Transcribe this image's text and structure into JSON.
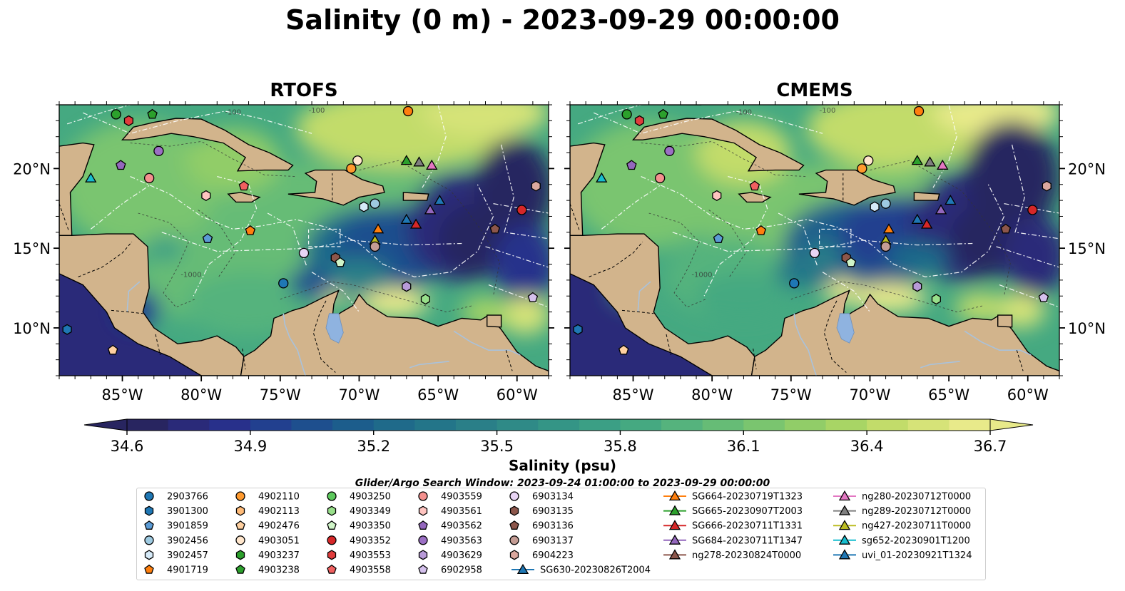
{
  "title": "Salinity (0 m) - 2023-09-29 00:00:00",
  "panels": [
    {
      "id": "rtofs",
      "title": "RTOFS"
    },
    {
      "id": "cmems",
      "title": "CMEMS"
    }
  ],
  "map": {
    "lon_range": [
      -89,
      -58
    ],
    "lat_range": [
      7,
      24
    ],
    "lon_ticks": [
      "85°W",
      "80°W",
      "75°W",
      "70°W",
      "65°W",
      "60°W"
    ],
    "lon_tick_values": [
      -85,
      -80,
      -75,
      -70,
      -65,
      -60
    ],
    "lat_ticks": [
      "10°N",
      "15°N",
      "20°N"
    ],
    "lat_tick_values": [
      10,
      15,
      20
    ],
    "depth_contour_labels": [
      "-100",
      "-1000"
    ],
    "land_color": "#d2b48c",
    "lake_color": "#8fb3e0",
    "river_color": "#a9c2dc"
  },
  "colorbar": {
    "label": "Salinity (psu)",
    "min": 34.6,
    "max": 36.7,
    "ticks": [
      "34.6",
      "34.9",
      "35.2",
      "35.5",
      "35.8",
      "36.1",
      "36.4",
      "36.7"
    ],
    "colors": [
      "#282560",
      "#2a2a79",
      "#28308b",
      "#22408f",
      "#1e4f8e",
      "#1c5d8c",
      "#1f6a8a",
      "#237589",
      "#2a7f88",
      "#2f8a87",
      "#349586",
      "#3b9f85",
      "#45a981",
      "#55b37d",
      "#66bc76",
      "#7ac56f",
      "#91cd68",
      "#a8d565",
      "#c2dc6a",
      "#d6e378",
      "#e8ea8a"
    ],
    "extend": "both"
  },
  "search_window": "Glider/Argo Search Window: 2023-09-24 01:00:00 to 2023-09-29 00:00:00",
  "legend": {
    "columns": [
      [
        {
          "label": "2903766",
          "marker": "circle",
          "color": "#1f77b4"
        },
        {
          "label": "3901300",
          "marker": "hexagon",
          "color": "#1f77b4"
        },
        {
          "label": "3901859",
          "marker": "pentagon",
          "color": "#5b9bd5"
        },
        {
          "label": "3902456",
          "marker": "circle",
          "color": "#9ecae1"
        },
        {
          "label": "3902457",
          "marker": "hexagon",
          "color": "#d6eaf8"
        },
        {
          "label": "4901719",
          "marker": "pentagon",
          "color": "#ff7f0e"
        }
      ],
      [
        {
          "label": "4902110",
          "marker": "circle",
          "color": "#ff9a2e"
        },
        {
          "label": "4902113",
          "marker": "hexagon",
          "color": "#ffbb78"
        },
        {
          "label": "4902476",
          "marker": "pentagon",
          "color": "#ffd0a0"
        },
        {
          "label": "4903051",
          "marker": "circle",
          "color": "#ffe6cc"
        },
        {
          "label": "4903237",
          "marker": "hexagon",
          "color": "#2ca02c"
        },
        {
          "label": "4903238",
          "marker": "pentagon",
          "color": "#2ca02c"
        }
      ],
      [
        {
          "label": "4903250",
          "marker": "circle",
          "color": "#5cc85c"
        },
        {
          "label": "4903349",
          "marker": "hexagon",
          "color": "#98df8a"
        },
        {
          "label": "4903350",
          "marker": "pentagon",
          "color": "#d0f5c8"
        },
        {
          "label": "4903352",
          "marker": "circle",
          "color": "#d62728"
        },
        {
          "label": "4903553",
          "marker": "hexagon",
          "color": "#e03c3c"
        },
        {
          "label": "4903558",
          "marker": "pentagon",
          "color": "#f06060"
        }
      ],
      [
        {
          "label": "4903559",
          "marker": "circle",
          "color": "#f4908e"
        },
        {
          "label": "4903561",
          "marker": "hexagon",
          "color": "#ffc4c0"
        },
        {
          "label": "4903562",
          "marker": "pentagon",
          "color": "#9467bd"
        },
        {
          "label": "4903563",
          "marker": "circle",
          "color": "#9b6fc4"
        },
        {
          "label": "4903629",
          "marker": "hexagon",
          "color": "#b89ad8"
        },
        {
          "label": "6902958",
          "marker": "pentagon",
          "color": "#d4c0ec"
        }
      ],
      [
        {
          "label": "6903134",
          "marker": "circle",
          "color": "#e8d4f4"
        },
        {
          "label": "6903135",
          "marker": "hexagon",
          "color": "#8c564b"
        },
        {
          "label": "6903136",
          "marker": "pentagon",
          "color": "#8c564b"
        },
        {
          "label": "6903137",
          "marker": "circle",
          "color": "#c49c94"
        },
        {
          "label": "6904223",
          "marker": "hexagon",
          "color": "#dba89e"
        },
        {
          "label": "SG630-20230826T2004",
          "marker": "triangle",
          "color": "#1f77b4"
        }
      ],
      [
        {
          "label": "SG664-20230719T1323",
          "marker": "triangle",
          "color": "#ff7f0e"
        },
        {
          "label": "SG665-20230907T2003",
          "marker": "triangle",
          "color": "#2ca02c"
        },
        {
          "label": "SG666-20230711T1331",
          "marker": "triangle",
          "color": "#d62728"
        },
        {
          "label": "SG684-20230711T1347",
          "marker": "triangle",
          "color": "#9467bd"
        },
        {
          "label": "ng278-20230824T0000",
          "marker": "triangle",
          "color": "#8c564b"
        }
      ],
      [
        {
          "label": "ng280-20230712T0000",
          "marker": "triangle",
          "color": "#e377c2"
        },
        {
          "label": "ng289-20230712T0000",
          "marker": "triangle",
          "color": "#7f7f7f"
        },
        {
          "label": "ng427-20230711T0000",
          "marker": "triangle",
          "color": "#bcbd22"
        },
        {
          "label": "sg652-20230901T1200",
          "marker": "triangle",
          "color": "#17becf"
        },
        {
          "label": "uvi_01-20230921T1324",
          "marker": "triangle",
          "color": "#1f77b4"
        }
      ]
    ]
  },
  "platforms": [
    {
      "id": "2903766",
      "lon": -85.4,
      "lat": 23.4,
      "marker": "circle",
      "color": "#2ca02c"
    },
    {
      "id": "4903553",
      "lon": -84.6,
      "lat": 23.0,
      "marker": "hexagon",
      "color": "#e03c3c"
    },
    {
      "id": "4903238",
      "lon": -83.1,
      "lat": 23.4,
      "marker": "pentagon",
      "color": "#2ca02c"
    },
    {
      "id": "4903563",
      "lon": -82.7,
      "lat": 21.1,
      "marker": "circle",
      "color": "#9b6fc4"
    },
    {
      "id": "4903562",
      "lon": -85.1,
      "lat": 20.2,
      "marker": "pentagon",
      "color": "#9467bd"
    },
    {
      "id": "4903559",
      "lon": -83.3,
      "lat": 19.4,
      "marker": "circle",
      "color": "#f4908e"
    },
    {
      "id": "sg652",
      "lon": -87.0,
      "lat": 19.4,
      "marker": "triangle",
      "color": "#17becf"
    },
    {
      "id": "4903561",
      "lon": -79.7,
      "lat": 18.3,
      "marker": "hexagon",
      "color": "#ffc4c0"
    },
    {
      "id": "4903558",
      "lon": -77.3,
      "lat": 18.9,
      "marker": "pentagon",
      "color": "#f06060"
    },
    {
      "id": "3901859",
      "lon": -79.6,
      "lat": 15.6,
      "marker": "pentagon",
      "color": "#5b9bd5"
    },
    {
      "id": "4901719",
      "lon": -76.9,
      "lat": 16.1,
      "marker": "pentagon",
      "color": "#ff7f0e"
    },
    {
      "id": "6903134",
      "lon": -73.5,
      "lat": 14.7,
      "marker": "circle",
      "color": "#e8d4f4"
    },
    {
      "id": "2903766b",
      "lon": -74.8,
      "lat": 12.8,
      "marker": "circle",
      "color": "#1f77b4"
    },
    {
      "id": "4903051",
      "lon": -70.1,
      "lat": 20.5,
      "marker": "circle",
      "color": "#ffe6cc"
    },
    {
      "id": "4902110",
      "lon": -70.5,
      "lat": 20.0,
      "marker": "circle",
      "color": "#ff9a2e"
    },
    {
      "id": "3902456",
      "lon": -69.0,
      "lat": 17.8,
      "marker": "circle",
      "color": "#9ecae1"
    },
    {
      "id": "3902457",
      "lon": -69.7,
      "lat": 17.6,
      "marker": "hexagon",
      "color": "#d6eaf8"
    },
    {
      "id": "4902110b",
      "lon": -66.9,
      "lat": 23.6,
      "marker": "circle",
      "color": "#ff7f0e"
    },
    {
      "id": "SG665",
      "lon": -67.0,
      "lat": 20.5,
      "marker": "triangle",
      "color": "#2ca02c"
    },
    {
      "id": "ng289",
      "lon": -66.2,
      "lat": 20.4,
      "marker": "triangle",
      "color": "#7f7f7f"
    },
    {
      "id": "ng280",
      "lon": -65.4,
      "lat": 20.2,
      "marker": "triangle",
      "color": "#e377c2"
    },
    {
      "id": "SG630",
      "lon": -64.9,
      "lat": 18.0,
      "marker": "triangle",
      "color": "#1f77b4"
    },
    {
      "id": "SG684",
      "lon": -65.5,
      "lat": 17.4,
      "marker": "triangle",
      "color": "#9467bd"
    },
    {
      "id": "uvi_01",
      "lon": -67.0,
      "lat": 16.8,
      "marker": "triangle",
      "color": "#1f77b4"
    },
    {
      "id": "SG666",
      "lon": -66.4,
      "lat": 16.5,
      "marker": "triangle",
      "color": "#d62728"
    },
    {
      "id": "SG664",
      "lon": -68.8,
      "lat": 16.2,
      "marker": "triangle",
      "color": "#ff7f0e"
    },
    {
      "id": "ng427",
      "lon": -69.0,
      "lat": 15.5,
      "marker": "triangle",
      "color": "#bcbd22"
    },
    {
      "id": "6903137",
      "lon": -69.0,
      "lat": 15.1,
      "marker": "circle",
      "color": "#c49c94"
    },
    {
      "id": "6903135",
      "lon": -71.5,
      "lat": 14.4,
      "marker": "hexagon",
      "color": "#8c564b"
    },
    {
      "id": "4903350",
      "lon": -71.2,
      "lat": 14.1,
      "marker": "pentagon",
      "color": "#d0f5c8"
    },
    {
      "id": "4903629",
      "lon": -67.0,
      "lat": 12.6,
      "marker": "hexagon",
      "color": "#b89ad8"
    },
    {
      "id": "4903349",
      "lon": -65.8,
      "lat": 11.8,
      "marker": "hexagon",
      "color": "#98df8a"
    },
    {
      "id": "4903352",
      "lon": -59.7,
      "lat": 17.4,
      "marker": "circle",
      "color": "#d62728"
    },
    {
      "id": "6904223",
      "lon": -58.8,
      "lat": 18.9,
      "marker": "hexagon",
      "color": "#dba89e"
    },
    {
      "id": "6902958",
      "lon": -59.0,
      "lat": 11.9,
      "marker": "pentagon",
      "color": "#d4c0ec"
    },
    {
      "id": "6903136",
      "lon": -61.4,
      "lat": 16.2,
      "marker": "pentagon",
      "color": "#8c564b"
    },
    {
      "id": "3901300",
      "lon": -88.5,
      "lat": 9.9,
      "marker": "hexagon",
      "color": "#1f77b4"
    },
    {
      "id": "4902476",
      "lon": -85.6,
      "lat": 8.6,
      "marker": "pentagon",
      "color": "#ffd0a0"
    }
  ]
}
